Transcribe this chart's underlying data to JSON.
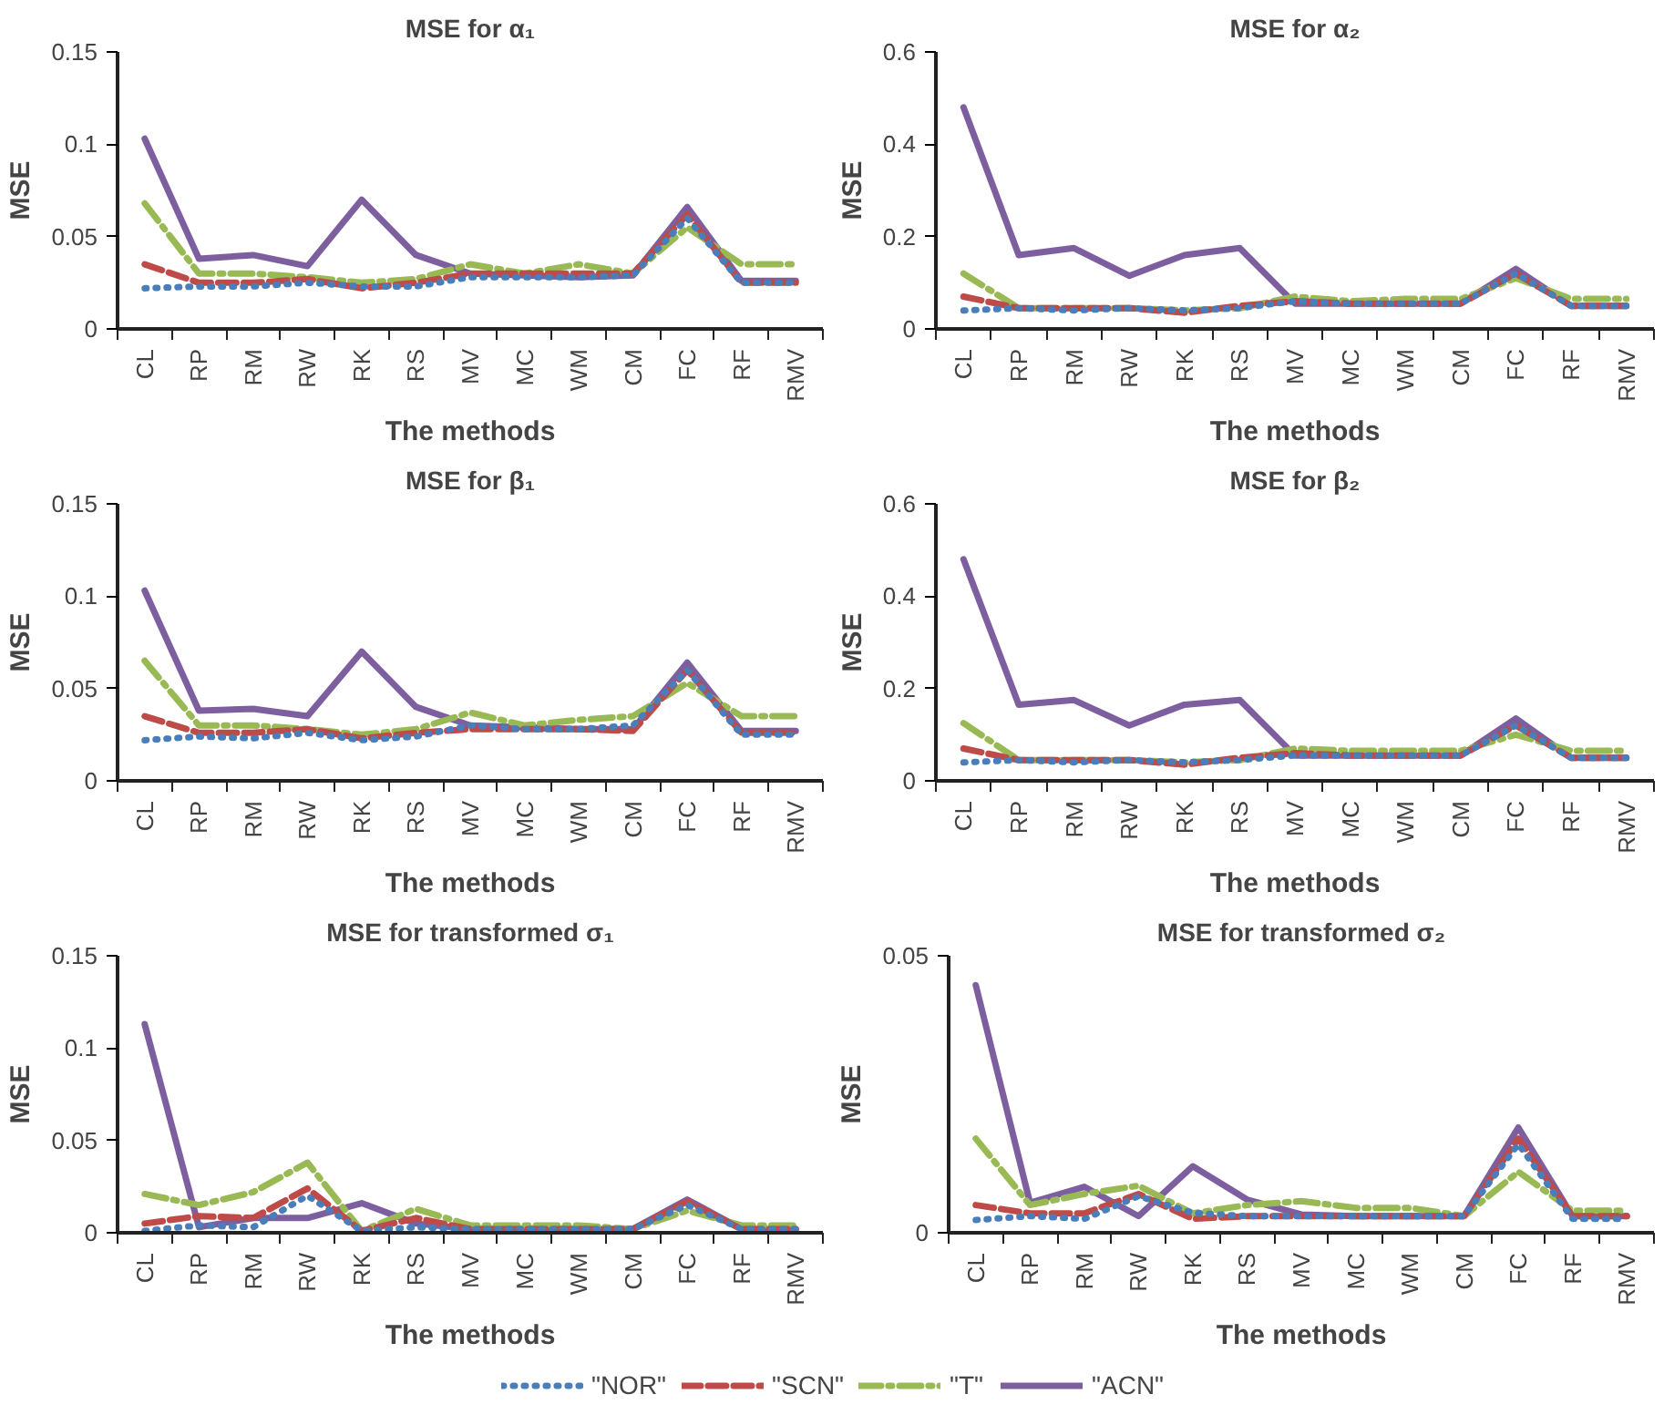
{
  "chart_data": [
    {
      "type": "line",
      "title": "MSE for α₁",
      "xlabel": "The methods",
      "ylabel": "MSE",
      "categories": [
        "CL",
        "RP",
        "RM",
        "RW",
        "RK",
        "RS",
        "MV",
        "MC",
        "WM",
        "CM",
        "FC",
        "RF",
        "RMV"
      ],
      "ylim": [
        0,
        0.15
      ],
      "yticks": [
        0,
        0.05,
        0.1,
        0.15
      ],
      "grid": false,
      "series": [
        {
          "color": "#4a7ebb",
          "line_style": "dotted",
          "values": [
            0.022,
            0.023,
            0.023,
            0.025,
            0.023,
            0.023,
            0.028,
            0.028,
            0.028,
            0.029,
            0.06,
            0.025,
            0.025
          ]
        },
        {
          "color": "#be4b48",
          "line_style": "dashed",
          "values": [
            0.035,
            0.025,
            0.025,
            0.027,
            0.022,
            0.025,
            0.03,
            0.03,
            0.03,
            0.03,
            0.062,
            0.025,
            0.025
          ]
        },
        {
          "color": "#98b954",
          "line_style": "dashdot",
          "values": [
            0.068,
            0.03,
            0.03,
            0.028,
            0.025,
            0.027,
            0.035,
            0.03,
            0.035,
            0.03,
            0.055,
            0.035,
            0.035
          ]
        },
        {
          "color": "#7d5fa0",
          "line_style": "solid",
          "values": [
            0.103,
            0.038,
            0.04,
            0.034,
            0.07,
            0.04,
            0.03,
            0.029,
            0.028,
            0.029,
            0.066,
            0.026,
            0.026
          ]
        }
      ]
    },
    {
      "type": "line",
      "title": "MSE for α₂",
      "xlabel": "The methods",
      "ylabel": "MSE",
      "categories": [
        "CL",
        "RP",
        "RM",
        "RW",
        "RK",
        "RS",
        "MV",
        "MC",
        "WM",
        "CM",
        "FC",
        "RF",
        "RMV"
      ],
      "ylim": [
        0,
        0.6
      ],
      "yticks": [
        0,
        0.2,
        0.4,
        0.6
      ],
      "grid": false,
      "series": [
        {
          "color": "#4a7ebb",
          "line_style": "dotted",
          "values": [
            0.04,
            0.045,
            0.04,
            0.045,
            0.04,
            0.045,
            0.06,
            0.055,
            0.055,
            0.055,
            0.12,
            0.05,
            0.05
          ]
        },
        {
          "color": "#be4b48",
          "line_style": "dashed",
          "values": [
            0.07,
            0.045,
            0.045,
            0.045,
            0.035,
            0.05,
            0.06,
            0.055,
            0.055,
            0.055,
            0.12,
            0.05,
            0.05
          ]
        },
        {
          "color": "#98b954",
          "line_style": "dashdot",
          "values": [
            0.12,
            0.045,
            0.045,
            0.045,
            0.04,
            0.045,
            0.07,
            0.06,
            0.065,
            0.065,
            0.11,
            0.065,
            0.065
          ]
        },
        {
          "color": "#7d5fa0",
          "line_style": "solid",
          "values": [
            0.48,
            0.16,
            0.175,
            0.115,
            0.16,
            0.175,
            0.055,
            0.055,
            0.055,
            0.055,
            0.13,
            0.05,
            0.05
          ]
        }
      ]
    },
    {
      "type": "line",
      "title": "MSE for β₁",
      "xlabel": "The methods",
      "ylabel": "MSE",
      "categories": [
        "CL",
        "RP",
        "RM",
        "RW",
        "RK",
        "RS",
        "MV",
        "MC",
        "WM",
        "CM",
        "FC",
        "RF",
        "RMV"
      ],
      "ylim": [
        0,
        0.15
      ],
      "yticks": [
        0,
        0.05,
        0.1,
        0.15
      ],
      "grid": false,
      "series": [
        {
          "color": "#4a7ebb",
          "line_style": "dotted",
          "values": [
            0.022,
            0.024,
            0.023,
            0.026,
            0.022,
            0.024,
            0.03,
            0.028,
            0.028,
            0.03,
            0.06,
            0.025,
            0.025
          ]
        },
        {
          "color": "#be4b48",
          "line_style": "dashed",
          "values": [
            0.035,
            0.026,
            0.026,
            0.028,
            0.023,
            0.026,
            0.028,
            0.028,
            0.028,
            0.027,
            0.06,
            0.026,
            0.026
          ]
        },
        {
          "color": "#98b954",
          "line_style": "dashdot",
          "values": [
            0.065,
            0.03,
            0.03,
            0.028,
            0.025,
            0.028,
            0.037,
            0.03,
            0.033,
            0.035,
            0.053,
            0.035,
            0.035
          ]
        },
        {
          "color": "#7d5fa0",
          "line_style": "solid",
          "values": [
            0.103,
            0.038,
            0.039,
            0.035,
            0.07,
            0.04,
            0.03,
            0.029,
            0.028,
            0.028,
            0.064,
            0.027,
            0.027
          ]
        }
      ]
    },
    {
      "type": "line",
      "title": "MSE for β₂",
      "xlabel": "The methods",
      "ylabel": "MSE",
      "categories": [
        "CL",
        "RP",
        "RM",
        "RW",
        "RK",
        "RS",
        "MV",
        "MC",
        "WM",
        "CM",
        "FC",
        "RF",
        "RMV"
      ],
      "ylim": [
        0,
        0.6
      ],
      "yticks": [
        0,
        0.2,
        0.4,
        0.6
      ],
      "grid": false,
      "series": [
        {
          "color": "#4a7ebb",
          "line_style": "dotted",
          "values": [
            0.04,
            0.045,
            0.04,
            0.045,
            0.04,
            0.045,
            0.055,
            0.055,
            0.055,
            0.055,
            0.12,
            0.05,
            0.05
          ]
        },
        {
          "color": "#be4b48",
          "line_style": "dashed",
          "values": [
            0.07,
            0.045,
            0.045,
            0.045,
            0.035,
            0.05,
            0.06,
            0.055,
            0.055,
            0.055,
            0.12,
            0.05,
            0.05
          ]
        },
        {
          "color": "#98b954",
          "line_style": "dashdot",
          "values": [
            0.125,
            0.045,
            0.045,
            0.045,
            0.04,
            0.045,
            0.07,
            0.065,
            0.065,
            0.065,
            0.1,
            0.065,
            0.065
          ]
        },
        {
          "color": "#7d5fa0",
          "line_style": "solid",
          "values": [
            0.48,
            0.165,
            0.175,
            0.12,
            0.165,
            0.175,
            0.055,
            0.055,
            0.055,
            0.055,
            0.135,
            0.05,
            0.05
          ]
        }
      ]
    },
    {
      "type": "line",
      "title": "MSE for transformed σ₁",
      "xlabel": "The methods",
      "ylabel": "MSE",
      "categories": [
        "CL",
        "RP",
        "RM",
        "RW",
        "RK",
        "RS",
        "MV",
        "MC",
        "WM",
        "CM",
        "FC",
        "RF",
        "RMV"
      ],
      "ylim": [
        0,
        0.15
      ],
      "yticks": [
        0,
        0.05,
        0.1,
        0.15
      ],
      "grid": false,
      "series": [
        {
          "color": "#4a7ebb",
          "line_style": "dotted",
          "values": [
            0.001,
            0.004,
            0.003,
            0.02,
            0.001,
            0.003,
            0.002,
            0.002,
            0.002,
            0.002,
            0.015,
            0.002,
            0.002
          ]
        },
        {
          "color": "#be4b48",
          "line_style": "dashed",
          "values": [
            0.005,
            0.009,
            0.008,
            0.024,
            0.001,
            0.008,
            0.002,
            0.002,
            0.002,
            0.002,
            0.017,
            0.002,
            0.002
          ]
        },
        {
          "color": "#98b954",
          "line_style": "dashdot",
          "values": [
            0.021,
            0.015,
            0.022,
            0.038,
            0.001,
            0.013,
            0.004,
            0.004,
            0.004,
            0.002,
            0.012,
            0.004,
            0.004
          ]
        },
        {
          "color": "#7d5fa0",
          "line_style": "solid",
          "values": [
            0.113,
            0.003,
            0.008,
            0.008,
            0.016,
            0.005,
            0.002,
            0.002,
            0.002,
            0.002,
            0.018,
            0.002,
            0.002
          ]
        }
      ]
    },
    {
      "type": "line",
      "title": "MSE for transformed σ₂",
      "xlabel": "The methods",
      "ylabel": "MSE",
      "categories": [
        "CL",
        "RP",
        "RM",
        "RW",
        "RK",
        "RS",
        "MV",
        "MC",
        "WM",
        "CM",
        "FC",
        "RF",
        "RMV"
      ],
      "ylim": [
        0,
        0.05
      ],
      "yticks": [
        0,
        0.05
      ],
      "grid": false,
      "legend": "bottom",
      "series": [
        {
          "name": "\"NOR\"",
          "color": "#4a7ebb",
          "line_style": "dotted",
          "values": [
            0.0023,
            0.003,
            0.0025,
            0.0066,
            0.0036,
            0.003,
            0.003,
            0.003,
            0.003,
            0.003,
            0.016,
            0.0025,
            0.0025
          ]
        },
        {
          "name": "\"SCN\"",
          "color": "#be4b48",
          "line_style": "dashed",
          "values": [
            0.005,
            0.0035,
            0.0035,
            0.007,
            0.0025,
            0.003,
            0.003,
            0.003,
            0.003,
            0.003,
            0.017,
            0.003,
            0.003
          ]
        },
        {
          "name": "\"T\"",
          "color": "#98b954",
          "line_style": "dashdot",
          "values": [
            0.017,
            0.005,
            0.007,
            0.0085,
            0.0035,
            0.005,
            0.0057,
            0.0045,
            0.0045,
            0.003,
            0.011,
            0.004,
            0.004
          ]
        },
        {
          "name": "\"ACN\"",
          "color": "#7d5fa0",
          "line_style": "solid",
          "values": [
            0.0447,
            0.0054,
            0.0083,
            0.003,
            0.012,
            0.006,
            0.0033,
            0.003,
            0.003,
            0.003,
            0.019,
            0.003,
            0.003
          ]
        }
      ]
    }
  ]
}
